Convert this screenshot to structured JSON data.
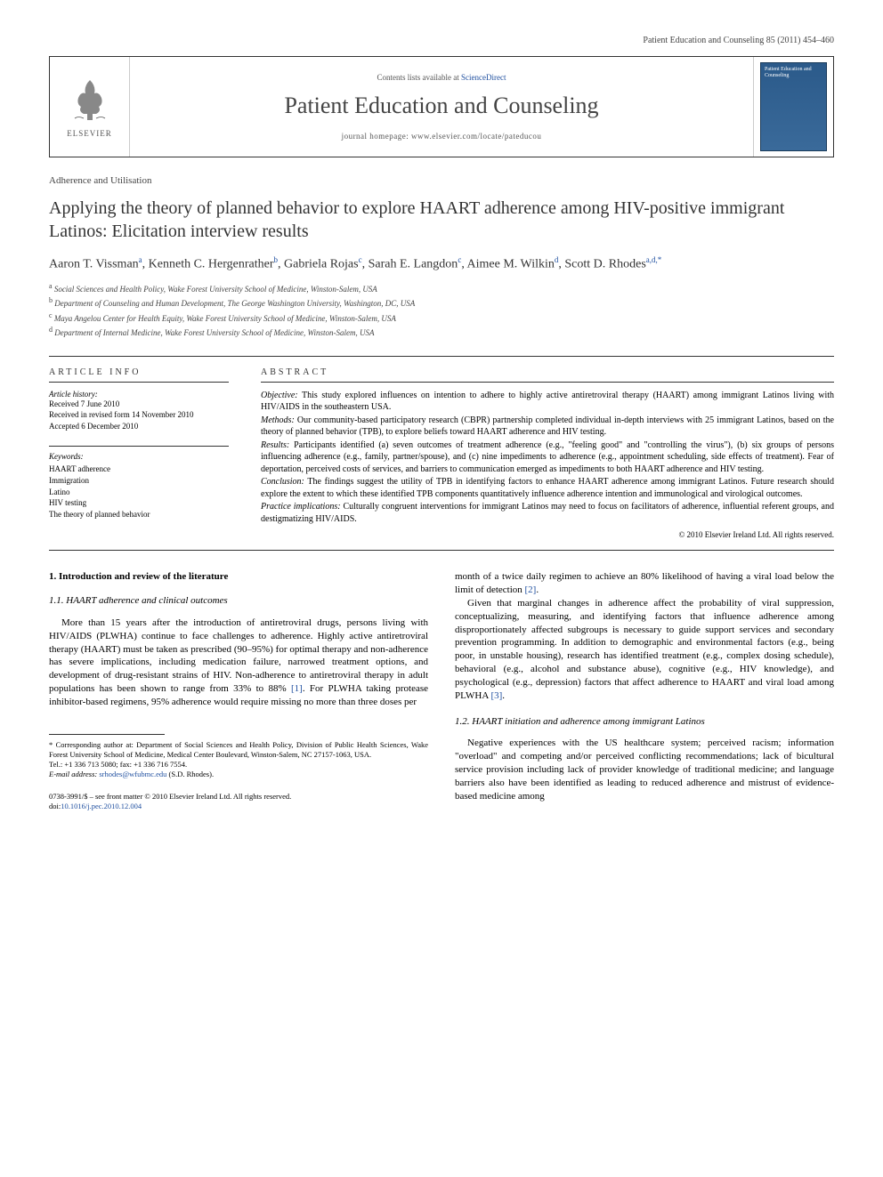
{
  "header": {
    "citation": "Patient Education and Counseling 85 (2011) 454–460"
  },
  "masthead": {
    "elsevier": "ELSEVIER",
    "contents_prefix": "Contents lists available at ",
    "contents_link": "ScienceDirect",
    "journal_title": "Patient Education and Counseling",
    "homepage_prefix": "journal homepage: ",
    "homepage_url": "www.elsevier.com/locate/pateducou",
    "cover_title": "Patient Education and Counseling"
  },
  "article": {
    "section": "Adherence and Utilisation",
    "title": "Applying the theory of planned behavior to explore HAART adherence among HIV-positive immigrant Latinos: Elicitation interview results",
    "authors_html": "Aaron T. Vissman<sup>a</sup>, Kenneth C. Hergenrather<sup>b</sup>, Gabriela Rojas<sup>c</sup>, Sarah E. Langdon<sup>c</sup>, Aimee M. Wilkin<sup>d</sup>, Scott D. Rhodes<sup>a,d,*</sup>",
    "affiliations": [
      {
        "sup": "a",
        "text": "Social Sciences and Health Policy, Wake Forest University School of Medicine, Winston-Salem, USA"
      },
      {
        "sup": "b",
        "text": "Department of Counseling and Human Development, The George Washington University, Washington, DC, USA"
      },
      {
        "sup": "c",
        "text": "Maya Angelou Center for Health Equity, Wake Forest University School of Medicine, Winston-Salem, USA"
      },
      {
        "sup": "d",
        "text": "Department of Internal Medicine, Wake Forest University School of Medicine, Winston-Salem, USA"
      }
    ]
  },
  "info": {
    "heading": "ARTICLE INFO",
    "history_label": "Article history:",
    "received": "Received 7 June 2010",
    "revised": "Received in revised form 14 November 2010",
    "accepted": "Accepted 6 December 2010",
    "keywords_label": "Keywords:",
    "keywords": [
      "HAART adherence",
      "Immigration",
      "Latino",
      "HIV testing",
      "The theory of planned behavior"
    ]
  },
  "abstract": {
    "heading": "ABSTRACT",
    "paras": [
      {
        "label": "Objective:",
        "text": " This study explored influences on intention to adhere to highly active antiretroviral therapy (HAART) among immigrant Latinos living with HIV/AIDS in the southeastern USA."
      },
      {
        "label": "Methods:",
        "text": " Our community-based participatory research (CBPR) partnership completed individual in-depth interviews with 25 immigrant Latinos, based on the theory of planned behavior (TPB), to explore beliefs toward HAART adherence and HIV testing."
      },
      {
        "label": "Results:",
        "text": " Participants identified (a) seven outcomes of treatment adherence (e.g., \"feeling good\" and \"controlling the virus\"), (b) six groups of persons influencing adherence (e.g., family, partner/spouse), and (c) nine impediments to adherence (e.g., appointment scheduling, side effects of treatment). Fear of deportation, perceived costs of services, and barriers to communication emerged as impediments to both HAART adherence and HIV testing."
      },
      {
        "label": "Conclusion:",
        "text": " The findings suggest the utility of TPB in identifying factors to enhance HAART adherence among immigrant Latinos. Future research should explore the extent to which these identified TPB components quantitatively influence adherence intention and immunological and virological outcomes."
      },
      {
        "label": "Practice implications:",
        "text": " Culturally congruent interventions for immigrant Latinos may need to focus on facilitators of adherence, influential referent groups, and destigmatizing HIV/AIDS."
      }
    ],
    "copyright": "© 2010 Elsevier Ireland Ltd. All rights reserved."
  },
  "body": {
    "h1": "1. Introduction and review of the literature",
    "s11": {
      "heading": "1.1. HAART adherence and clinical outcomes",
      "p1": "More than 15 years after the introduction of antiretroviral drugs, persons living with HIV/AIDS (PLWHA) continue to face challenges to adherence. Highly active antiretroviral therapy (HAART) must be taken as prescribed (90–95%) for optimal therapy and non-adherence has severe implications, including medication failure, narrowed treatment options, and development of drug-resistant strains of HIV. Non-adherence to antiretroviral therapy in adult populations has been shown to range from 33% to 88% ",
      "ref1": "[1]",
      "p1b": ". For PLWHA taking protease inhibitor-based regimens, 95% adherence would require missing no more than three doses per",
      "p2a": "month of a twice daily regimen to achieve an 80% likelihood of having a viral load below the limit of detection ",
      "ref2": "[2]",
      "p2b": ".",
      "p3": "Given that marginal changes in adherence affect the probability of viral suppression, conceptualizing, measuring, and identifying factors that influence adherence among disproportionately affected subgroups is necessary to guide support services and secondary prevention programming. In addition to demographic and environmental factors (e.g., being poor, in unstable housing), research has identified treatment (e.g., complex dosing schedule), behavioral (e.g., alcohol and substance abuse), cognitive (e.g., HIV knowledge), and psychological (e.g., depression) factors that affect adherence to HAART and viral load among PLWHA ",
      "ref3": "[3]",
      "p3b": "."
    },
    "s12": {
      "heading": "1.2. HAART initiation and adherence among immigrant Latinos",
      "p1": "Negative experiences with the US healthcare system; perceived racism; information \"overload\" and competing and/or perceived conflicting recommendations; lack of bicultural service provision including lack of provider knowledge of traditional medicine; and language barriers also have been identified as leading to reduced adherence and mistrust of evidence-based medicine among"
    }
  },
  "footnote": {
    "corr": "* Corresponding author at: Department of Social Sciences and Health Policy, Division of Public Health Sciences, Wake Forest University School of Medicine, Medical Center Boulevard, Winston-Salem, NC 27157-1063, USA.",
    "tel": "Tel.: +1 336 713 5080; fax: +1 336 716 7554.",
    "email_label": "E-mail address: ",
    "email": "srhodes@wfubmc.edu",
    "email_suffix": " (S.D. Rhodes)."
  },
  "bottom": {
    "line1": "0738-3991/$ – see front matter © 2010 Elsevier Ireland Ltd. All rights reserved.",
    "doi_label": "doi:",
    "doi": "10.1016/j.pec.2010.12.004"
  },
  "colors": {
    "link": "#2050a0",
    "text": "#000000",
    "muted": "#444444",
    "cover_bg": "#2b5a8a"
  }
}
